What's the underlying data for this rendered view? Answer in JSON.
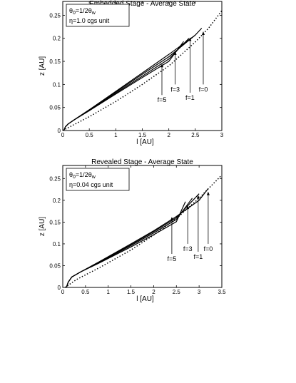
{
  "chart_data": [
    {
      "type": "line",
      "title": "Embedded Stage - Average State",
      "xlabel": "l [AU]",
      "ylabel": "z [AU]",
      "xlim": [
        0,
        3
      ],
      "ylim": [
        0,
        0.28
      ],
      "xticks": [
        "0",
        "0.5",
        "1",
        "1.5",
        "2",
        "2.5",
        "3"
      ],
      "xtick_values": [
        0,
        0.5,
        1,
        1.5,
        2,
        2.5,
        3
      ],
      "yticks": [
        "0",
        "0.05",
        "0.1",
        "0.15",
        "0.2",
        "0.25"
      ],
      "ytick_values": [
        0,
        0.05,
        0.1,
        0.15,
        0.2,
        0.25
      ],
      "grid": false,
      "info_box": {
        "line1_main": "θ",
        "line1_sub0": "0",
        "line1_mid": "=1/2θ",
        "line1_subw": "w",
        "line2": "η=1.0 cgs unit"
      },
      "series": [
        {
          "name": "f=0",
          "style": "solid",
          "x": [
            0.02,
            0.05,
            0.1,
            0.2,
            0.5,
            1.0,
            1.5,
            2.0,
            2.5,
            2.62
          ],
          "y": [
            0.0,
            0.008,
            0.014,
            0.022,
            0.045,
            0.085,
            0.125,
            0.165,
            0.207,
            0.222
          ]
        },
        {
          "name": "f=1",
          "style": "solid",
          "x": [
            0.02,
            0.05,
            0.1,
            0.2,
            0.5,
            1.0,
            1.5,
            2.0,
            2.5
          ],
          "y": [
            0.0,
            0.008,
            0.014,
            0.022,
            0.045,
            0.083,
            0.122,
            0.16,
            0.207
          ]
        },
        {
          "name": "f=3",
          "style": "solid",
          "x": [
            0.02,
            0.05,
            0.1,
            0.2,
            0.5,
            1.0,
            1.5,
            2.0,
            2.38
          ],
          "y": [
            0.0,
            0.008,
            0.014,
            0.022,
            0.044,
            0.081,
            0.118,
            0.155,
            0.2
          ]
        },
        {
          "name": "f=5",
          "style": "solid",
          "x": [
            0.02,
            0.05,
            0.1,
            0.2,
            0.5,
            1.0,
            1.5,
            2.0,
            2.28
          ],
          "y": [
            0.0,
            0.008,
            0.014,
            0.022,
            0.043,
            0.079,
            0.115,
            0.15,
            0.193
          ]
        },
        {
          "name": "",
          "style": "dotted",
          "x": [
            0.0,
            0.2,
            0.5,
            1.0,
            1.5,
            2.0,
            2.5,
            2.75,
            3.0
          ],
          "y": [
            0.0,
            0.012,
            0.03,
            0.063,
            0.1,
            0.14,
            0.192,
            0.222,
            0.26
          ]
        }
      ],
      "annotations": [
        {
          "text": "f=0",
          "x": 2.65,
          "y_tip": 0.215,
          "y_text": 0.1
        },
        {
          "text": "f=1",
          "x": 2.4,
          "y_tip": 0.202,
          "y_text": 0.082
        },
        {
          "text": "f=3",
          "x": 2.12,
          "y_tip": 0.172,
          "y_text": 0.1
        },
        {
          "text": "f=5",
          "x": 1.87,
          "y_tip": 0.145,
          "y_text": 0.077
        }
      ]
    },
    {
      "type": "line",
      "title": "Revealed Stage - Average State",
      "xlabel": "l [AU]",
      "ylabel": "z [AU]",
      "xlim": [
        0,
        3.5
      ],
      "ylim": [
        0,
        0.28
      ],
      "xticks": [
        "0",
        "0.5",
        "1",
        "1.5",
        "2",
        "2.5",
        "3",
        "3.5"
      ],
      "xtick_values": [
        0,
        0.5,
        1,
        1.5,
        2,
        2.5,
        3,
        3.5
      ],
      "yticks": [
        "0",
        "0.05",
        "0.1",
        "0.15",
        "0.2",
        "0.25"
      ],
      "ytick_values": [
        0,
        0.05,
        0.1,
        0.15,
        0.2,
        0.25
      ],
      "grid": false,
      "info_box": {
        "line1_main": "θ",
        "line1_sub0": "0",
        "line1_mid": "=1/2θ",
        "line1_subw": "w",
        "line2": "η=0.04 cgs unit"
      },
      "series": [
        {
          "name": "f=0",
          "style": "solid",
          "x": [
            0.08,
            0.12,
            0.2,
            0.4,
            0.8,
            1.5,
            2.0,
            2.5,
            3.0,
            3.2
          ],
          "y": [
            0.0,
            0.012,
            0.024,
            0.036,
            0.059,
            0.1,
            0.13,
            0.163,
            0.2,
            0.227
          ]
        },
        {
          "name": "f=1",
          "style": "solid",
          "x": [
            0.08,
            0.12,
            0.2,
            0.4,
            0.8,
            1.5,
            2.0,
            2.5,
            3.0
          ],
          "y": [
            0.0,
            0.012,
            0.024,
            0.036,
            0.058,
            0.098,
            0.128,
            0.16,
            0.215
          ]
        },
        {
          "name": "f=3",
          "style": "solid",
          "x": [
            0.08,
            0.12,
            0.2,
            0.4,
            0.8,
            1.5,
            2.0,
            2.5,
            2.85
          ],
          "y": [
            0.0,
            0.012,
            0.024,
            0.036,
            0.057,
            0.096,
            0.125,
            0.156,
            0.205
          ]
        },
        {
          "name": "f=5",
          "style": "solid",
          "x": [
            0.08,
            0.12,
            0.2,
            0.4,
            0.8,
            1.5,
            2.0,
            2.5,
            2.7
          ],
          "y": [
            0.0,
            0.012,
            0.024,
            0.036,
            0.056,
            0.093,
            0.121,
            0.151,
            0.197
          ]
        },
        {
          "name": "",
          "style": "dotted",
          "x": [
            0.05,
            0.3,
            0.8,
            1.5,
            2.0,
            2.5,
            3.0,
            3.5
          ],
          "y": [
            0.0,
            0.018,
            0.045,
            0.086,
            0.12,
            0.158,
            0.205,
            0.258
          ]
        }
      ],
      "annotations": [
        {
          "text": "f=0",
          "x": 3.2,
          "y_tip": 0.22,
          "y_text": 0.1
        },
        {
          "text": "f=1",
          "x": 2.98,
          "y_tip": 0.212,
          "y_text": 0.082
        },
        {
          "text": "f=3",
          "x": 2.75,
          "y_tip": 0.188,
          "y_text": 0.1
        },
        {
          "text": "f=5",
          "x": 2.4,
          "y_tip": 0.162,
          "y_text": 0.077
        }
      ]
    }
  ]
}
